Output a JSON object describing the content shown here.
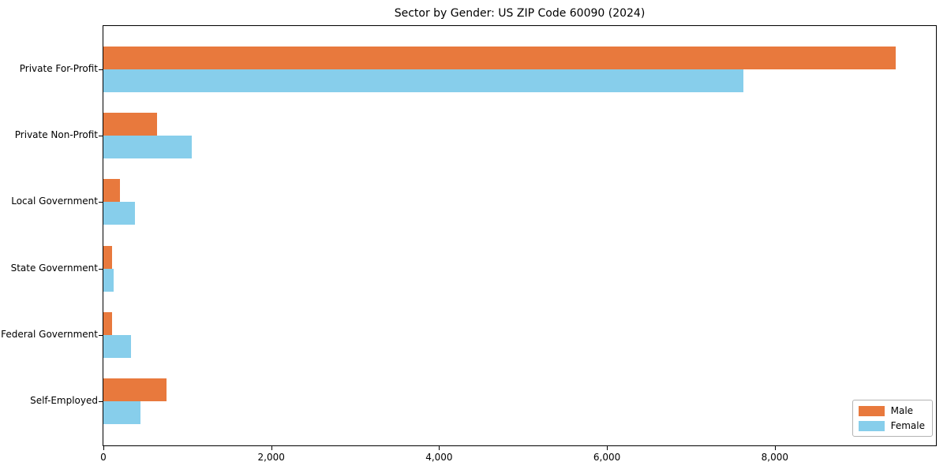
{
  "chart_data": {
    "type": "bar",
    "orientation": "horizontal",
    "title": "Sector by Gender: US ZIP Code 60090 (2024)",
    "categories": [
      "Private For-Profit",
      "Private Non-Profit",
      "Local Government",
      "State Government",
      "Federal Government",
      "Self-Employed"
    ],
    "series": [
      {
        "name": "Male",
        "color": "#E8793D",
        "values": [
          9440,
          640,
          200,
          105,
          100,
          750
        ]
      },
      {
        "name": "Female",
        "color": "#87CEEB",
        "values": [
          7630,
          1050,
          380,
          120,
          330,
          440
        ]
      }
    ],
    "xlabel": "",
    "ylabel": "",
    "xlim": [
      0,
      9920
    ],
    "xticks": [
      0,
      2000,
      4000,
      6000,
      8000
    ],
    "xtick_labels": [
      "0",
      "2,000",
      "4,000",
      "6,000",
      "8,000"
    ],
    "grid": false,
    "legend_position": "lower-right",
    "axis_color": "#000000",
    "background_color": "#ffffff"
  }
}
